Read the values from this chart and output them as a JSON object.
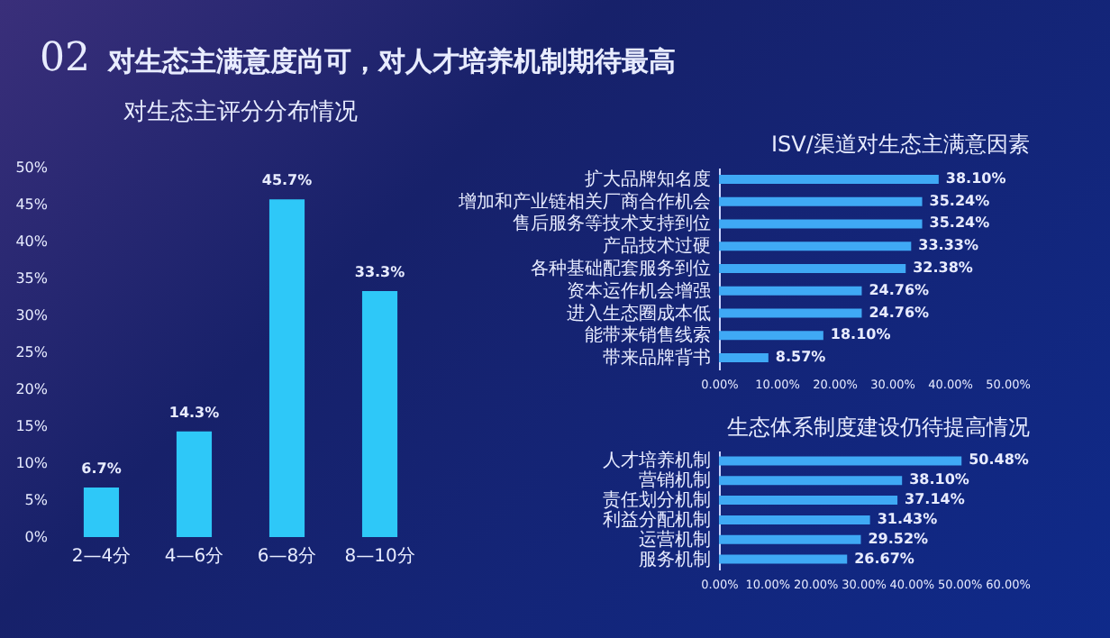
{
  "chart_data": [
    {
      "type": "bar",
      "title": "对生态主评分分布情况",
      "annotations": [
        "02",
        "对生态主满意度尚可，对人才培养机制期待最高"
      ],
      "categories": [
        "2—4分",
        "4—6分",
        "6—8分",
        "8—10分"
      ],
      "values": [
        6.7,
        14.3,
        45.7,
        33.3
      ],
      "value_labels": [
        "6.7%",
        "14.3%",
        "45.7%",
        "33.3%"
      ],
      "color": "#2ec8f8",
      "ylim": [
        0,
        50
      ],
      "yticks": [
        {
          "value": 0,
          "label": "0%"
        },
        {
          "value": 5,
          "label": "5%"
        },
        {
          "value": 10,
          "label": "10%"
        },
        {
          "value": 15,
          "label": "15%"
        },
        {
          "value": 20,
          "label": "20%"
        },
        {
          "value": 25,
          "label": "25%"
        },
        {
          "value": 30,
          "label": "30%"
        },
        {
          "value": 35,
          "label": "35%"
        },
        {
          "value": 40,
          "label": "40%"
        },
        {
          "value": 45,
          "label": "45%"
        },
        {
          "value": 50,
          "label": "50%"
        }
      ]
    },
    {
      "type": "bar",
      "orientation": "horizontal",
      "title": "ISV/渠道对生态主满意因素",
      "categories": [
        "扩大品牌知名度",
        "增加和产业链相关厂商合作机会",
        "售后服务等技术支持到位",
        "产品技术过硬",
        "各种基础配套服务到位",
        "资本运作机会增强",
        "进入生态圈成本低",
        "能带来销售线索",
        "带来品牌背书"
      ],
      "values": [
        38.1,
        35.24,
        35.24,
        33.33,
        32.38,
        24.76,
        24.76,
        18.1,
        8.57
      ],
      "value_labels": [
        "38.10%",
        "35.24%",
        "35.24%",
        "33.33%",
        "32.38%",
        "24.76%",
        "24.76%",
        "18.10%",
        "8.57%"
      ],
      "color": "#3fa9f5",
      "xlim": [
        0,
        50
      ],
      "xticks": [
        {
          "value": 0,
          "label": "0.00%"
        },
        {
          "value": 10,
          "label": "10.00%"
        },
        {
          "value": 20,
          "label": "20.00%"
        },
        {
          "value": 30,
          "label": "30.00%"
        },
        {
          "value": 40,
          "label": "40.00%"
        },
        {
          "value": 50,
          "label": "50.00%"
        }
      ]
    },
    {
      "type": "bar",
      "orientation": "horizontal",
      "title": "生态体系制度建设仍待提高情况",
      "categories": [
        "人才培养机制",
        "营销机制",
        "责任划分机制",
        "利益分配机制",
        "运营机制",
        "服务机制"
      ],
      "values": [
        50.48,
        38.1,
        37.14,
        31.43,
        29.52,
        26.67
      ],
      "value_labels": [
        "50.48%",
        "38.10%",
        "37.14%",
        "31.43%",
        "29.52%",
        "26.67%"
      ],
      "color": "#3fa9f5",
      "xlim": [
        0,
        60
      ],
      "xticks": [
        {
          "value": 0,
          "label": "0.00%"
        },
        {
          "value": 10,
          "label": "10.00%"
        },
        {
          "value": 20,
          "label": "20.00%"
        },
        {
          "value": 30,
          "label": "30.00%"
        },
        {
          "value": 40,
          "label": "40.00%"
        },
        {
          "value": 50,
          "label": "50.00%"
        },
        {
          "value": 60,
          "label": "60.00%"
        }
      ]
    }
  ]
}
